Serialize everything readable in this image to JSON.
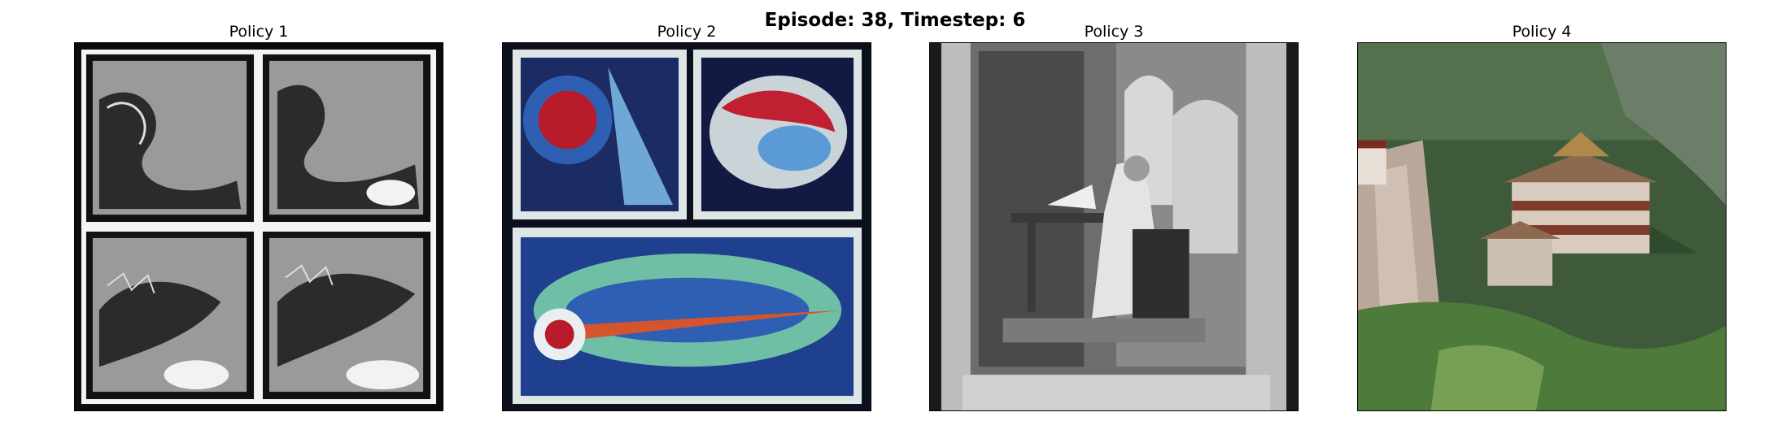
{
  "figure": {
    "suptitle": "Episode: 38, Timestep: 6"
  },
  "panels": [
    {
      "title": "Policy 1"
    },
    {
      "title": "Policy 2"
    },
    {
      "title": "Policy 3"
    },
    {
      "title": "Policy 4"
    }
  ]
}
